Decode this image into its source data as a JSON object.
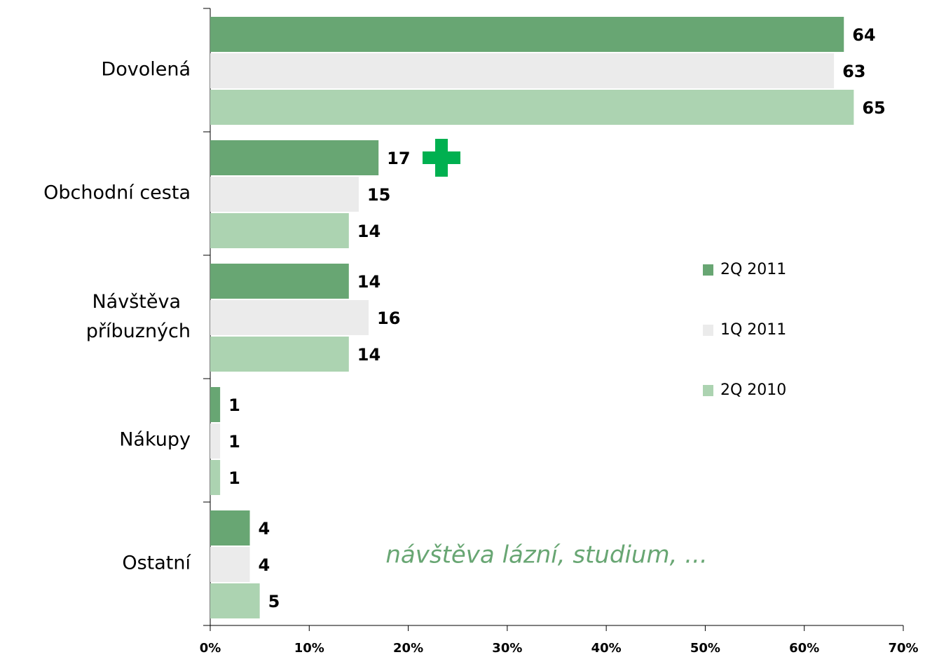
{
  "chart_data": {
    "type": "bar",
    "orientation": "horizontal",
    "categories": [
      "Dovolená",
      "Obchodní cesta",
      "Návštěva příbuzných",
      "Nákupy",
      "Ostatní"
    ],
    "series": [
      {
        "name": "2Q 2011",
        "color": "#68a673",
        "values": [
          64,
          17,
          14,
          1,
          4
        ]
      },
      {
        "name": "1Q 2011",
        "color": "#ebebeb",
        "values": [
          63,
          15,
          16,
          1,
          4
        ]
      },
      {
        "name": "2Q 2010",
        "color": "#acd3b1",
        "values": [
          65,
          14,
          14,
          1,
          5
        ]
      }
    ],
    "xlim": [
      0,
      70
    ],
    "xticks": [
      {
        "value": 0,
        "label": "0%"
      },
      {
        "value": 10,
        "label": "10%"
      },
      {
        "value": 20,
        "label": "20%"
      },
      {
        "value": 30,
        "label": "30%"
      },
      {
        "value": 40,
        "label": "40%"
      },
      {
        "value": 50,
        "label": "50%"
      },
      {
        "value": 60,
        "label": "60%"
      },
      {
        "value": 70,
        "label": "70%"
      }
    ],
    "annotation": "návštěva lázní, studium, ...",
    "legend": "right"
  }
}
